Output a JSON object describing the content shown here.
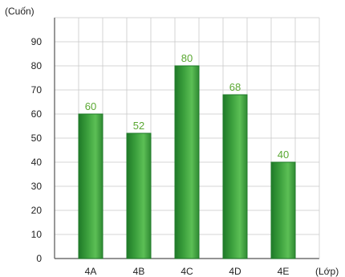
{
  "chart_data": {
    "type": "bar",
    "categories": [
      "4A",
      "4B",
      "4C",
      "4D",
      "4E"
    ],
    "values": [
      60,
      52,
      80,
      68,
      40
    ],
    "data_labels": [
      "60",
      "52",
      "80",
      "68",
      "40"
    ],
    "title": "",
    "xlabel": "(Lớp)",
    "ylabel": "(Cuốn)",
    "ylim": [
      0,
      100
    ],
    "yticks": [
      0,
      10,
      20,
      30,
      40,
      50,
      60,
      70,
      80,
      90
    ],
    "grid": true,
    "legend": "none"
  },
  "colors": {
    "bar_fill": "#3a9e3c",
    "bar_fill_dark": "#1f7a28",
    "bar_fill_light": "#5cbf55",
    "data_label": "#5aa832",
    "grid": "#c9c9c9",
    "axis": "#555555"
  }
}
